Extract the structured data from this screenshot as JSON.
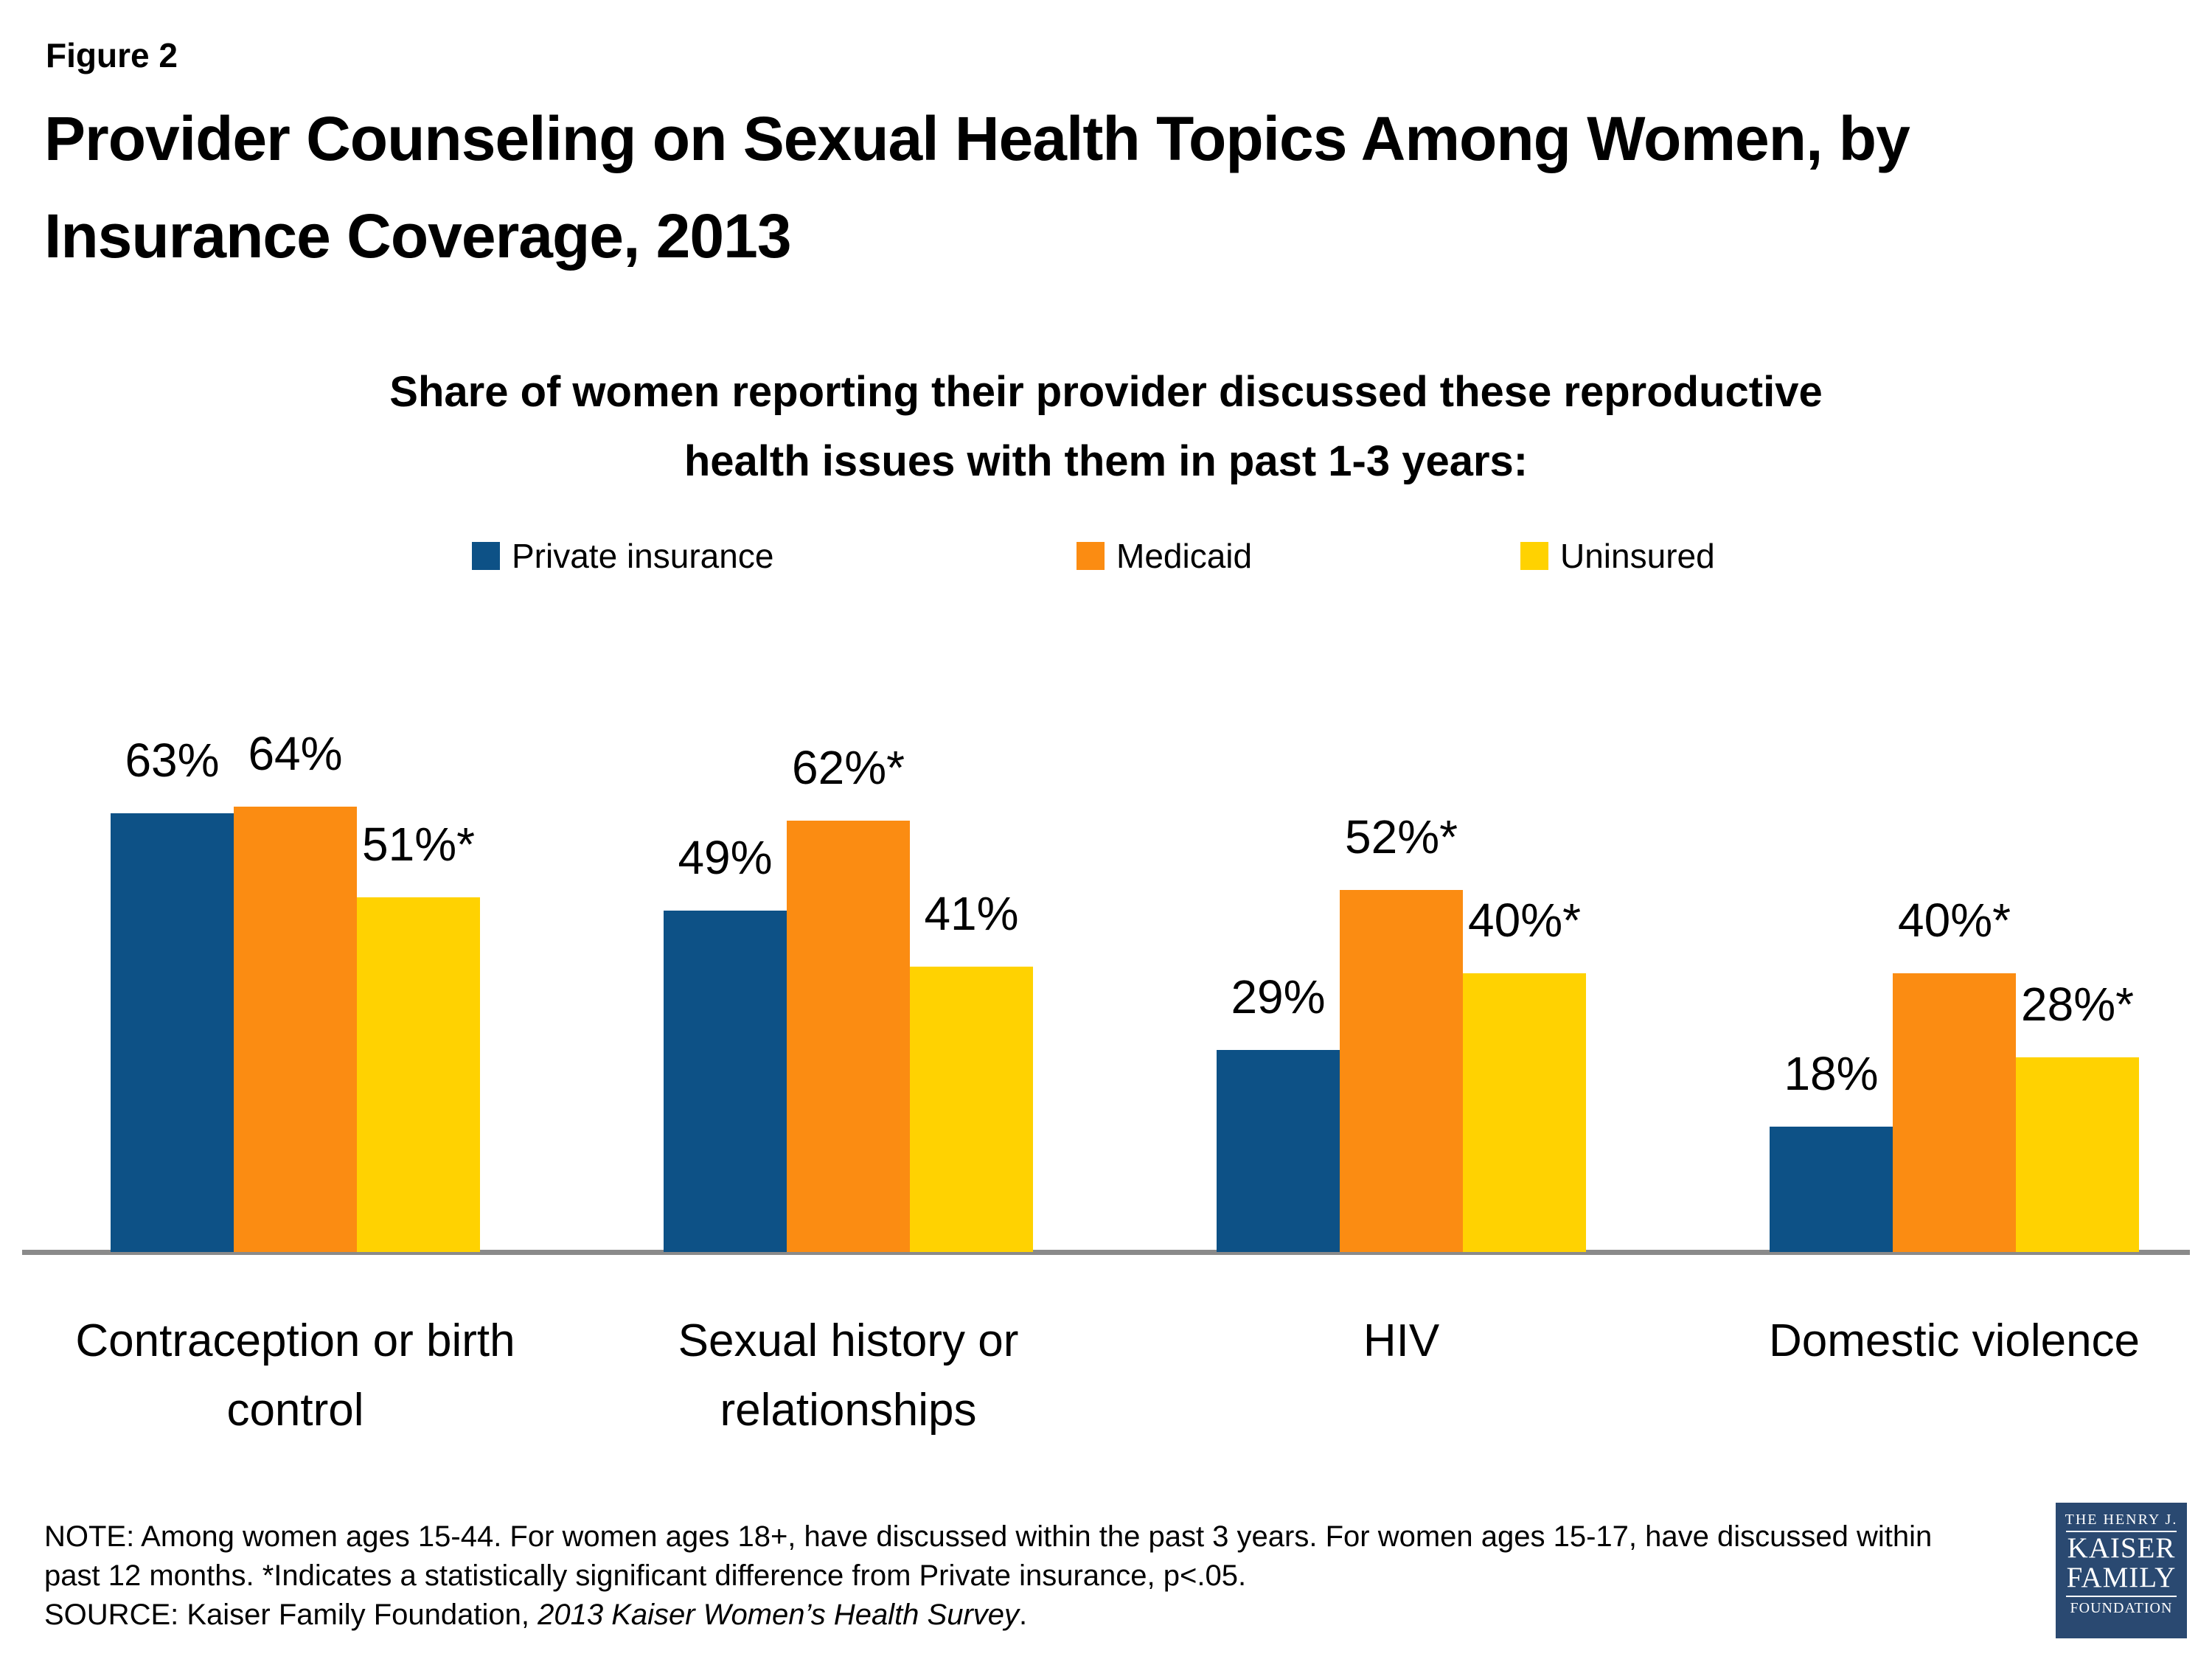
{
  "figure_label": "Figure 2",
  "title_line1": "Provider Counseling on Sexual Health Topics Among Women, by",
  "title_line2": "Insurance Coverage, 2013",
  "subtitle_line1": "Share of women reporting their provider discussed these reproductive",
  "subtitle_line2": "health issues with them in past 1-3 years:",
  "legend": [
    {
      "label": "Private insurance",
      "color": "#0d5186"
    },
    {
      "label": "Medicaid",
      "color": "#fb8c12"
    },
    {
      "label": "Uninsured",
      "color": "#ffd201"
    }
  ],
  "chart_data": {
    "type": "bar",
    "title": "Share of women reporting their provider discussed these reproductive health issues with them in past 1-3 years:",
    "categories": [
      "Contraception or birth control",
      "Sexual history or relationships",
      "HIV",
      "Domestic violence"
    ],
    "series": [
      {
        "name": "Private insurance",
        "color": "#0d5186",
        "values": [
          63,
          49,
          29,
          18
        ],
        "labels": [
          "63%",
          "49%",
          "29%",
          "18%"
        ]
      },
      {
        "name": "Medicaid",
        "color": "#fb8c12",
        "values": [
          64,
          62,
          52,
          40
        ],
        "labels": [
          "64%",
          "62%*",
          "52%*",
          "40%*"
        ]
      },
      {
        "name": "Uninsured",
        "color": "#ffd201",
        "values": [
          51,
          41,
          40,
          28
        ],
        "labels": [
          "51%*",
          "41%",
          "40%*",
          "28%*"
        ]
      }
    ],
    "ylim": [
      0,
      70
    ],
    "y_axis_visible": false,
    "gridlines": false,
    "legend_position": "top",
    "axis_line_color": "#8a8a8a",
    "value_suffix": "%",
    "significance_marker": "*"
  },
  "note_line1": "NOTE: Among women ages 15-44. For women ages 18+, have discussed within the past 3 years. For women ages 15-17, have discussed within",
  "note_line2": "past 12 months. *Indicates a statistically significant difference from Private insurance, p<.05.",
  "source_prefix": "SOURCE: Kaiser Family Foundation, ",
  "source_italic": "2013 Kaiser Women’s Health Survey",
  "source_suffix": ".",
  "logo": {
    "line1": "THE HENRY J.",
    "line2": "KAISER",
    "line3": "FAMILY",
    "line4": "FOUNDATION"
  }
}
